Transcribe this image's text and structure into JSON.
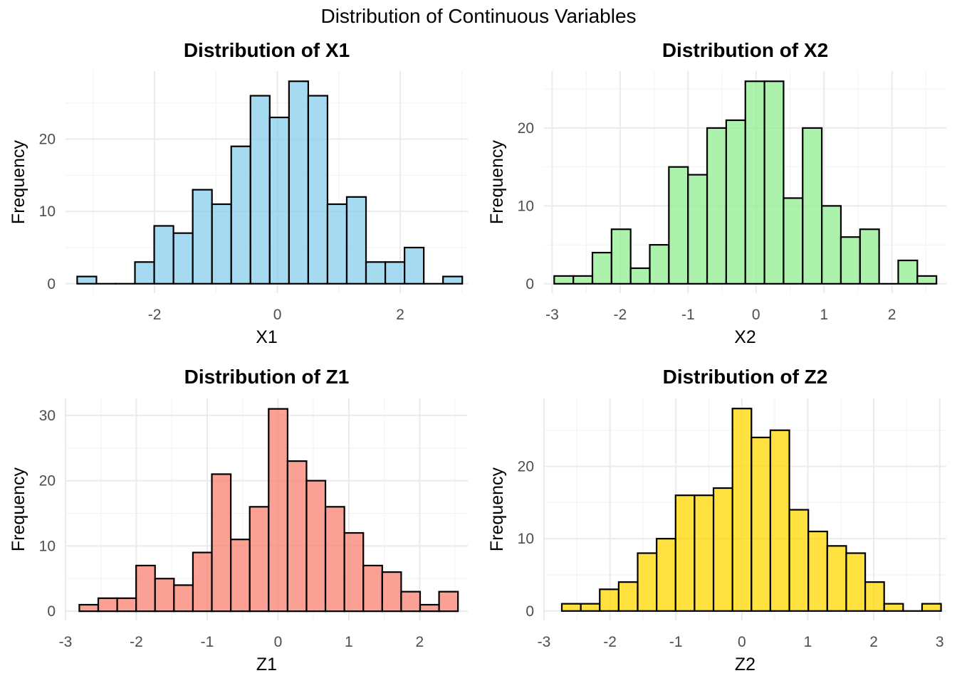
{
  "figure": {
    "title": "Distribution of Continuous Variables"
  },
  "chart_data": [
    {
      "type": "bar",
      "title": "Distribution of X1",
      "xlabel": "X1",
      "ylabel": "Frequency",
      "fill": "#87CEEB",
      "bin_start": -3.26,
      "bin_width": 0.3135,
      "counts": [
        1,
        0,
        0,
        3,
        8,
        7,
        13,
        11,
        19,
        26,
        23,
        28,
        26,
        11,
        12,
        3,
        3,
        5,
        0,
        1
      ],
      "xlim": [
        -3.45,
        3.1
      ],
      "ylim": [
        -1.3,
        29.4
      ],
      "xticks": [
        -2,
        0,
        2
      ],
      "xtick_labels": [
        "-2",
        "0",
        "2"
      ],
      "yticks": [
        0,
        10,
        20
      ],
      "ytick_labels": [
        "0",
        "10",
        "20"
      ]
    },
    {
      "type": "bar",
      "title": "Distribution of X2",
      "xlabel": "X2",
      "ylabel": "Frequency",
      "fill": "#90EE90",
      "bin_start": -2.97,
      "bin_width": 0.28125,
      "counts": [
        1,
        1,
        4,
        7,
        2,
        5,
        15,
        14,
        20,
        21,
        26,
        26,
        11,
        20,
        10,
        6,
        7,
        0,
        3,
        1
      ],
      "xlim": [
        -3.12,
        2.8
      ],
      "ylim": [
        -1.2,
        27.3
      ],
      "xticks": [
        -3,
        -2,
        -1,
        0,
        1,
        2
      ],
      "xtick_labels": [
        "-3",
        "-2",
        "-1",
        "0",
        "1",
        "2"
      ],
      "yticks": [
        0,
        10,
        20
      ],
      "ytick_labels": [
        "0",
        "10",
        "20"
      ]
    },
    {
      "type": "bar",
      "title": "Distribution of Z1",
      "xlabel": "Z1",
      "ylabel": "Frequency",
      "fill": "#FA8072",
      "bin_start": -2.805,
      "bin_width": 0.2673,
      "counts": [
        1,
        2,
        2,
        7,
        5,
        4,
        9,
        21,
        11,
        16,
        31,
        23,
        20,
        16,
        12,
        7,
        6,
        3,
        1,
        3
      ],
      "xlim": [
        -3.0,
        2.68
      ],
      "ylim": [
        -1.4,
        32.6
      ],
      "xticks": [
        -3,
        -2,
        -1,
        0,
        1,
        2
      ],
      "xtick_labels": [
        "-3",
        "-2",
        "-1",
        "0",
        "1",
        "2"
      ],
      "yticks": [
        0,
        10,
        20,
        30
      ],
      "ytick_labels": [
        "0",
        "10",
        "20",
        "30"
      ]
    },
    {
      "type": "bar",
      "title": "Distribution of Z2",
      "xlabel": "Z2",
      "ylabel": "Frequency",
      "fill": "#FFD700",
      "bin_start": -2.73,
      "bin_width": 0.2875,
      "counts": [
        1,
        1,
        3,
        4,
        8,
        10,
        16,
        16,
        17,
        28,
        24,
        25,
        14,
        11,
        9,
        8,
        4,
        1,
        0,
        1
      ],
      "xlim": [
        -3.0,
        3.1
      ],
      "ylim": [
        -1.3,
        29.4
      ],
      "xticks": [
        -3,
        -2,
        -1,
        0,
        1,
        2,
        3
      ],
      "xtick_labels": [
        "-3",
        "-2",
        "-1",
        "0",
        "1",
        "2",
        "3"
      ],
      "yticks": [
        0,
        10,
        20
      ],
      "ytick_labels": [
        "0",
        "10",
        "20"
      ]
    }
  ]
}
